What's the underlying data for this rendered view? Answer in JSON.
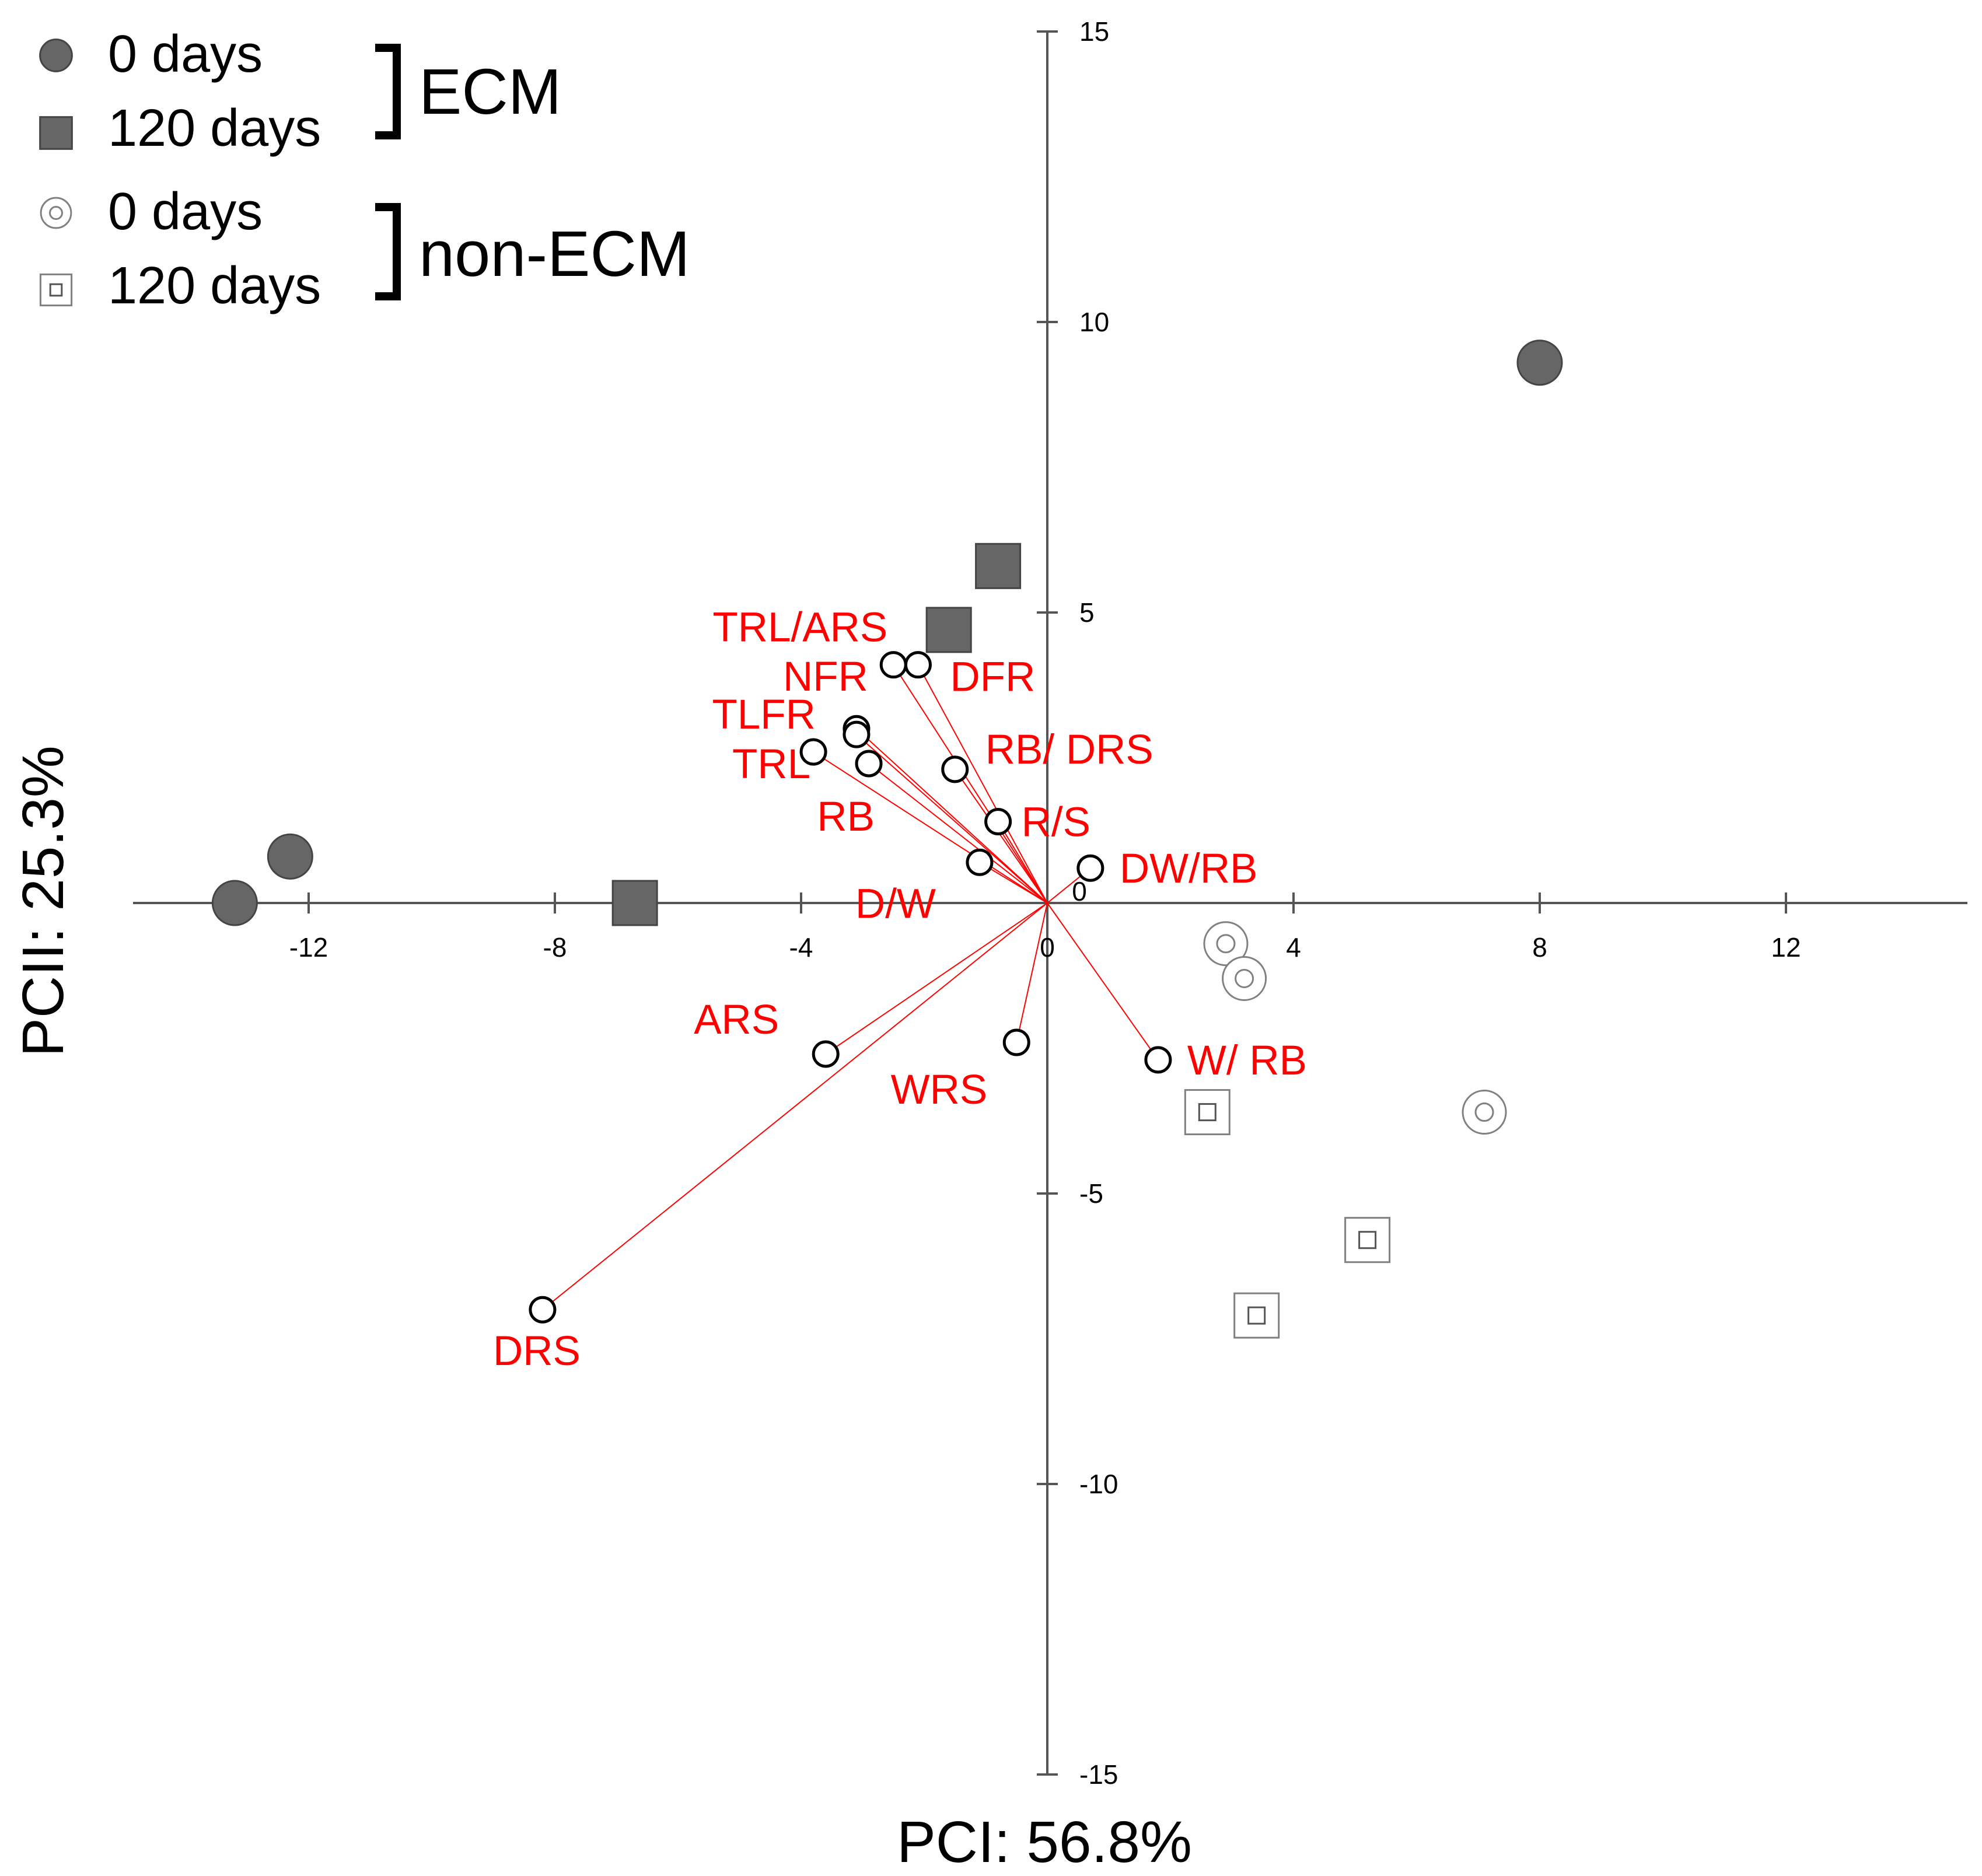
{
  "chart_data": {
    "type": "scatter",
    "title": "",
    "xlabel": "PCI: 56.8%",
    "ylabel": "PCII: 25.3%",
    "xlim": [
      -16,
      16
    ],
    "ylim": [
      -15,
      15
    ],
    "x_ticks": [
      -12,
      -8,
      -4,
      0,
      4,
      8,
      12
    ],
    "y_ticks": [
      15,
      10,
      5,
      0,
      -5,
      -10,
      -15
    ],
    "origin_label": "0",
    "grid": false,
    "legend": {
      "position": "top-left",
      "entries": [
        {
          "marker": "filled-circle",
          "label": "0 days",
          "color": "#666666"
        },
        {
          "marker": "filled-square",
          "label": "120 days",
          "color": "#666666"
        },
        {
          "marker": "open-double-circle",
          "label": "0 days",
          "color": "#808080"
        },
        {
          "marker": "open-double-square",
          "label": "120 days",
          "color": "#808080"
        }
      ],
      "groups": [
        {
          "label": "ECM",
          "entries": [
            0,
            1
          ]
        },
        {
          "label": "non-ECM",
          "entries": [
            2,
            3
          ]
        }
      ]
    },
    "series": [
      {
        "name": "ECM 0 days",
        "marker": "filled-circle",
        "points": [
          [
            8.0,
            9.3
          ],
          [
            -12.3,
            0.8
          ],
          [
            -13.2,
            0.0
          ]
        ]
      },
      {
        "name": "ECM 120 days",
        "marker": "filled-square",
        "points": [
          [
            -0.8,
            5.8
          ],
          [
            -1.6,
            4.7
          ],
          [
            -6.7,
            0.0
          ]
        ]
      },
      {
        "name": "non-ECM 0 days",
        "marker": "open-double-circle",
        "points": [
          [
            2.9,
            -0.7
          ],
          [
            3.2,
            -1.3
          ],
          [
            7.1,
            -3.6
          ]
        ]
      },
      {
        "name": "non-ECM 120 days",
        "marker": "open-double-square",
        "points": [
          [
            2.6,
            -3.6
          ],
          [
            5.2,
            -5.8
          ],
          [
            3.4,
            -7.1
          ]
        ]
      }
    ],
    "loadings": [
      {
        "label": "TRL/ARS",
        "x": -2.5,
        "y": 4.1
      },
      {
        "label": "DFR",
        "x": -2.1,
        "y": 4.1
      },
      {
        "label": "NFR",
        "x": -3.1,
        "y": 3.0
      },
      {
        "label": "TLFR",
        "x": -3.1,
        "y": 2.9
      },
      {
        "label": "TRL",
        "x": -3.8,
        "y": 2.6
      },
      {
        "label": "RB",
        "x": -2.9,
        "y": 2.4
      },
      {
        "label": "RB/ DRS",
        "x": -1.5,
        "y": 2.3
      },
      {
        "label": "R/S",
        "x": -0.8,
        "y": 1.4
      },
      {
        "label": "D/W",
        "x": -1.1,
        "y": 0.7
      },
      {
        "label": "DW/RB",
        "x": 0.7,
        "y": 0.6
      },
      {
        "label": "ARS",
        "x": -3.6,
        "y": -2.6
      },
      {
        "label": "WRS",
        "x": -0.5,
        "y": -2.4
      },
      {
        "label": "W/ RB",
        "x": 1.8,
        "y": -2.7
      },
      {
        "label": "DRS",
        "x": -8.2,
        "y": -7.0
      }
    ],
    "loading_color": "#ff0000",
    "marker_fill_color": "#666666",
    "open_marker_color": "#808080"
  }
}
